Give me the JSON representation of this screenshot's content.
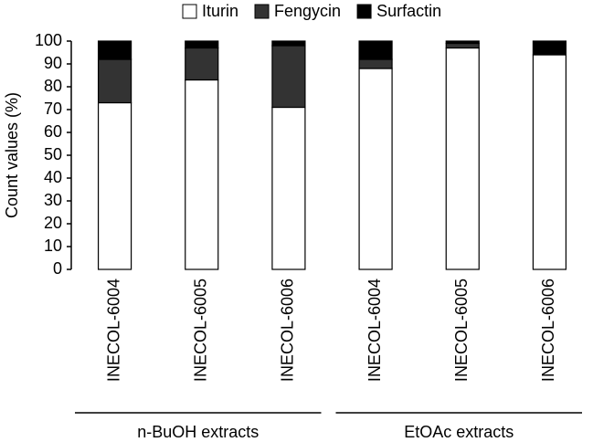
{
  "chart_data": {
    "type": "stacked_bar",
    "ylabel": "Count values (%)",
    "categories": [
      "INECOL-6004",
      "INECOL-6005",
      "INECOL-6006",
      "INECOL-6004",
      "INECOL-6005",
      "INECOL-6006"
    ],
    "groups": [
      "n-BuOH extracts",
      "EtOAc extracts"
    ],
    "series": [
      {
        "name": "Iturin",
        "color": "#ffffff",
        "values": [
          73,
          83,
          71,
          88,
          97,
          94
        ]
      },
      {
        "name": "Fengycin",
        "color": "#333333",
        "values": [
          19,
          14,
          27,
          4,
          2,
          0
        ]
      },
      {
        "name": "Surfactin",
        "color": "#000000",
        "values": [
          8,
          3,
          2,
          8,
          1,
          6
        ]
      }
    ],
    "ylim": [
      0,
      100
    ],
    "yticks": [
      0,
      10,
      20,
      30,
      40,
      50,
      60,
      70,
      80,
      90,
      100
    ],
    "grid": false,
    "legend": "top"
  }
}
